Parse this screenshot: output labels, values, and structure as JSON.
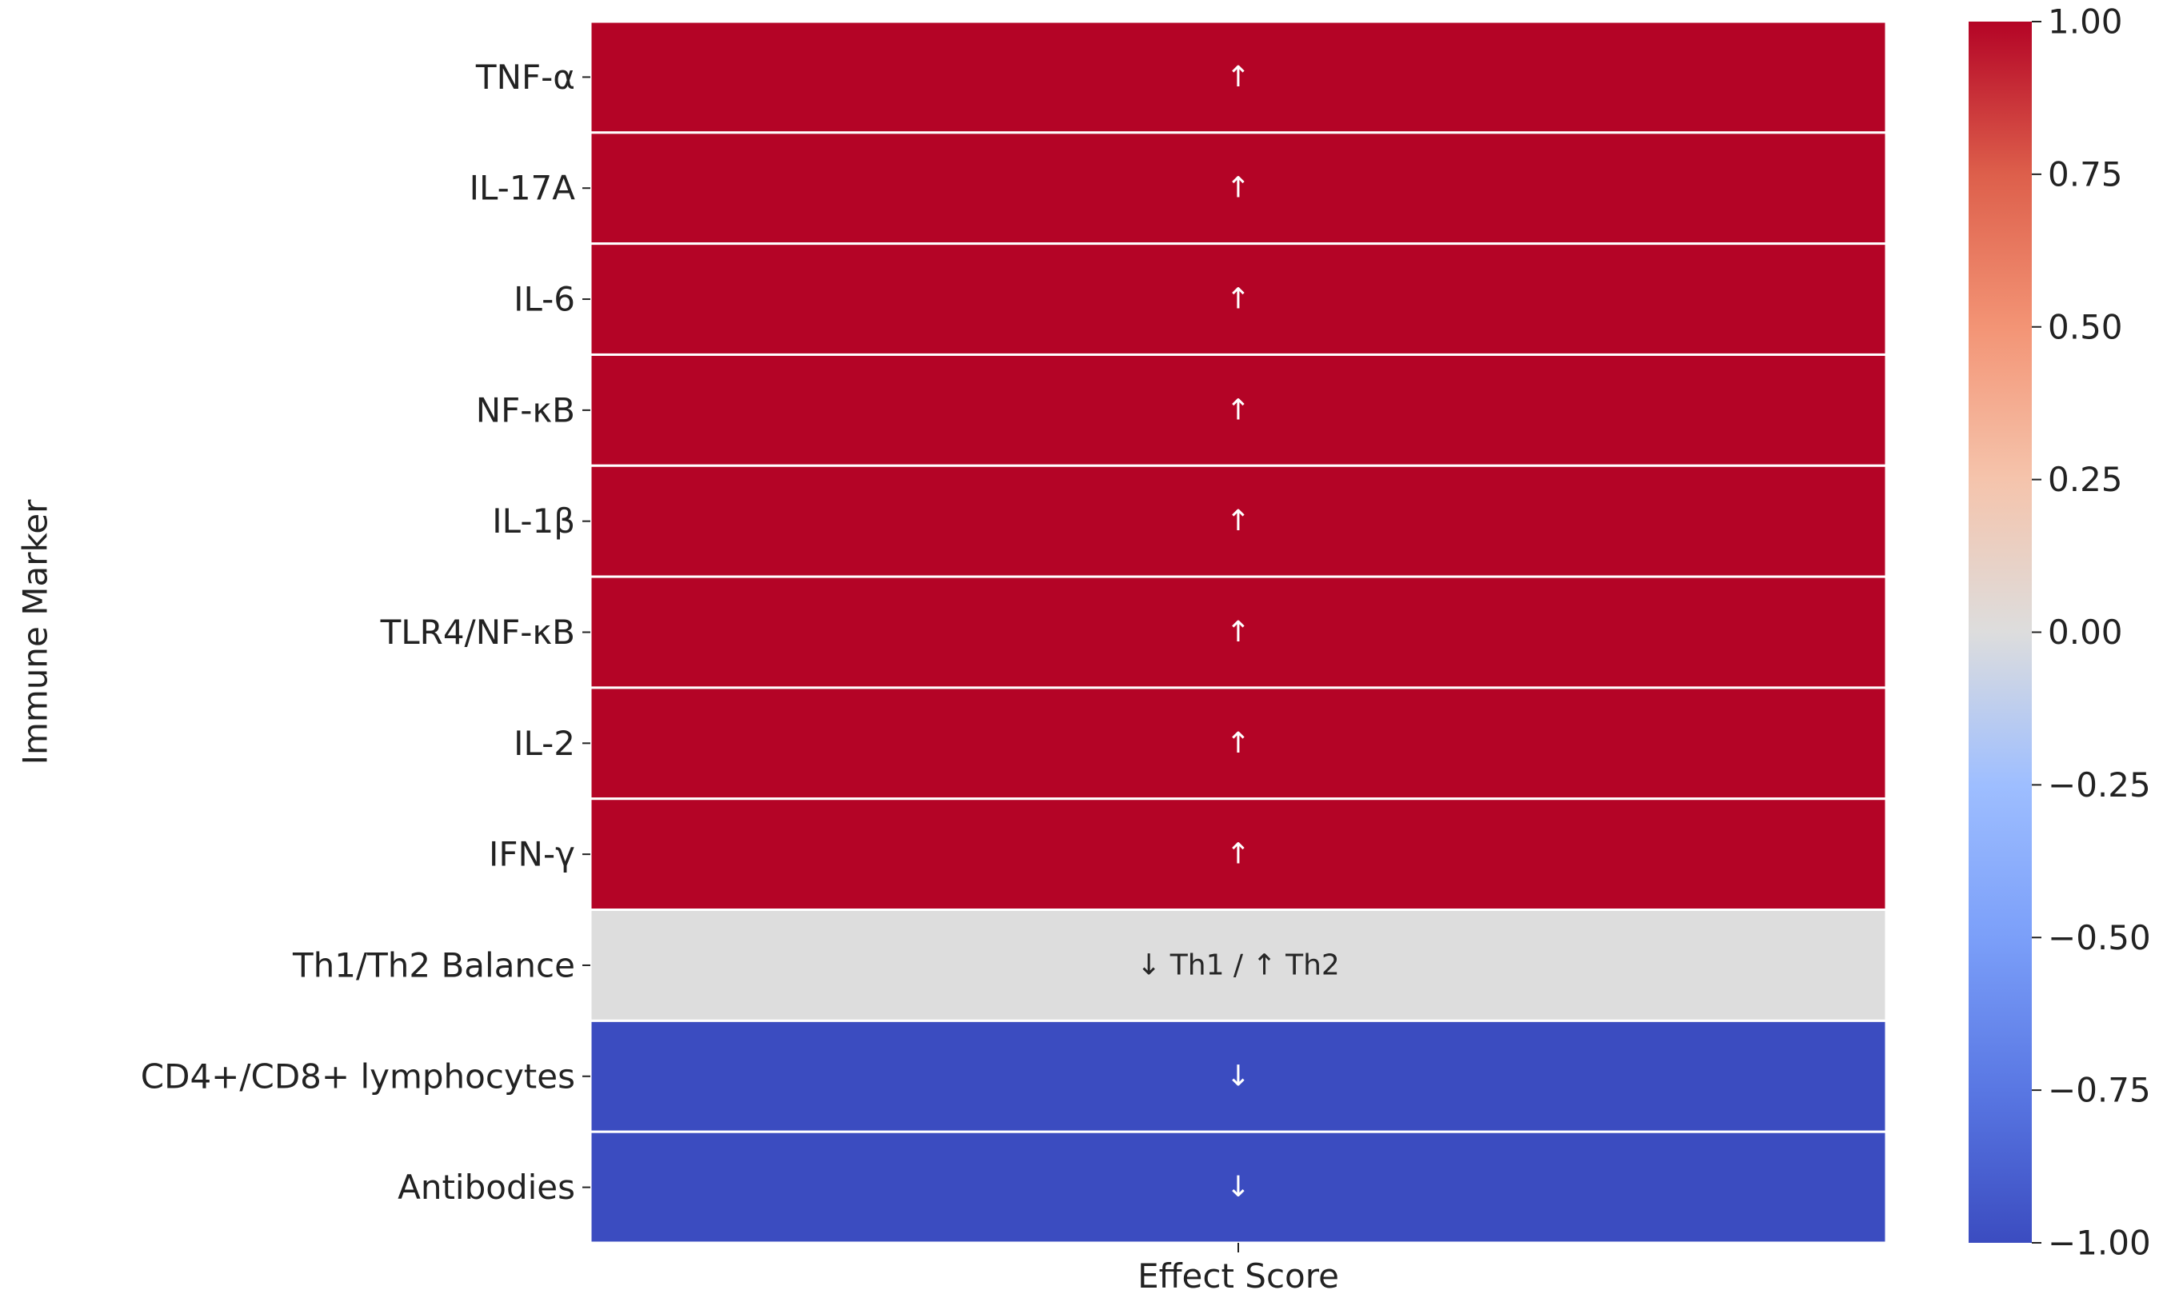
{
  "chart_data": {
    "type": "heatmap",
    "title": "",
    "xlabel": "",
    "ylabel": "Immune Marker",
    "x_categories": [
      "Effect Score"
    ],
    "rows": [
      {
        "label": "TNF-α",
        "value": 1,
        "annotation": "↑"
      },
      {
        "label": "IL-17A",
        "value": 1,
        "annotation": "↑"
      },
      {
        "label": "IL-6",
        "value": 1,
        "annotation": "↑"
      },
      {
        "label": "NF-κB",
        "value": 1,
        "annotation": "↑"
      },
      {
        "label": "IL-1β",
        "value": 1,
        "annotation": "↑"
      },
      {
        "label": "TLR4/NF-κB",
        "value": 1,
        "annotation": "↑"
      },
      {
        "label": "IL-2",
        "value": 1,
        "annotation": "↑"
      },
      {
        "label": "IFN-γ",
        "value": 1,
        "annotation": "↑"
      },
      {
        "label": "Th1/Th2 Balance",
        "value": 0,
        "annotation": "↓ Th1 / ↑ Th2"
      },
      {
        "label": "CD4+/CD8+ lymphocytes",
        "value": -1,
        "annotation": "↓"
      },
      {
        "label": "Antibodies",
        "value": -1,
        "annotation": "↓"
      }
    ],
    "colorbar": {
      "range": [
        -1,
        1
      ],
      "ticks": [
        1,
        0.75,
        0.5,
        0.25,
        0,
        -0.25,
        -0.5,
        -0.75,
        -1
      ],
      "tick_labels": [
        "1.00",
        "0.75",
        "0.50",
        "0.25",
        "0.00",
        "−0.25",
        "−0.50",
        "−0.75",
        "−1.00"
      ],
      "colormap": "coolwarm",
      "colors": {
        "low": "#3b4cc0",
        "mid": "#dddddd",
        "high": "#b40426"
      }
    },
    "grid": false,
    "legend": "colorbar-right"
  }
}
